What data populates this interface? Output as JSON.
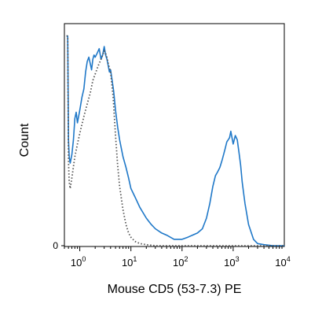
{
  "chart_data": {
    "type": "line",
    "title": "",
    "xlabel": "Mouse CD5 (53-7.3) PE",
    "ylabel": "Count",
    "x_scale": "log",
    "xlim": [
      0.5,
      10000
    ],
    "ylim": [
      0,
      100
    ],
    "grid": false,
    "x_ticks": [
      {
        "value": 1,
        "base": "10",
        "exp": "0"
      },
      {
        "value": 10,
        "base": "10",
        "exp": "1"
      },
      {
        "value": 100,
        "base": "10",
        "exp": "2"
      },
      {
        "value": 1000,
        "base": "10",
        "exp": "3"
      },
      {
        "value": 10000,
        "base": "10",
        "exp": "4"
      }
    ],
    "y_ticks": [
      {
        "value": 0,
        "label": "0"
      }
    ],
    "series": [
      {
        "style": "solid",
        "color": "#1f78c8",
        "x": [
          0.55,
          0.58,
          0.6,
          0.62,
          0.65,
          0.7,
          0.75,
          0.8,
          0.85,
          0.9,
          1.0,
          1.1,
          1.2,
          1.3,
          1.4,
          1.5,
          1.6,
          1.7,
          1.8,
          1.9,
          2.0,
          2.2,
          2.4,
          2.6,
          2.8,
          3.0,
          3.2,
          3.4,
          3.6,
          3.8,
          4.0,
          4.3,
          4.6,
          5.0,
          5.5,
          6.0,
          7.0,
          8.0,
          9.0,
          10.0,
          12.0,
          15.0,
          20.0,
          25.0,
          30.0,
          40.0,
          50.0,
          70.0,
          100.0,
          130.0,
          160.0,
          200.0,
          250.0,
          300.0,
          350.0,
          400.0,
          450.0,
          500.0,
          550.0,
          600.0,
          650.0,
          700.0,
          750.0,
          800.0,
          850.0,
          900.0,
          950.0,
          1000.0,
          1100.0,
          1200.0,
          1300.0,
          1400.0,
          1500.0,
          1700.0,
          2000.0,
          2500.0,
          3000.0,
          4000.0,
          6000.0,
          10000.0
        ],
        "y": [
          99,
          99,
          50,
          42,
          39,
          43,
          50,
          60,
          63,
          58,
          64,
          70,
          74,
          82,
          87,
          89,
          86,
          83,
          88,
          90,
          89,
          91,
          93,
          88,
          90,
          94,
          90,
          88,
          85,
          82,
          83,
          78,
          73,
          64,
          56,
          50,
          42,
          37,
          32,
          27,
          23,
          18,
          13,
          10,
          8,
          6,
          5,
          3,
          3,
          4,
          5,
          6,
          8,
          13,
          20,
          28,
          33,
          35,
          37,
          40,
          43,
          46,
          49,
          50,
          51,
          54,
          51,
          48,
          52,
          50,
          44,
          38,
          30,
          20,
          10,
          3,
          1,
          0.5,
          0,
          0
        ]
      },
      {
        "style": "dotted",
        "color": "#555555",
        "x": [
          0.55,
          0.58,
          0.6,
          0.62,
          0.65,
          0.7,
          0.8,
          0.9,
          1.0,
          1.2,
          1.4,
          1.6,
          1.8,
          2.0,
          2.3,
          2.6,
          3.0,
          3.3,
          3.6,
          4.0,
          4.5,
          5.0,
          5.5,
          6.0,
          7.0,
          8.0,
          9.0,
          10.0,
          12.0,
          15.0,
          20.0,
          30.0,
          50.0,
          100.0,
          10000.0
        ],
        "y": [
          99,
          99,
          40,
          30,
          27,
          32,
          42,
          48,
          53,
          61,
          67,
          72,
          78,
          81,
          85,
          88,
          92,
          90,
          86,
          82,
          70,
          52,
          38,
          28,
          17,
          10,
          6,
          4,
          2,
          1,
          0.5,
          0,
          0,
          0,
          0
        ]
      }
    ]
  }
}
